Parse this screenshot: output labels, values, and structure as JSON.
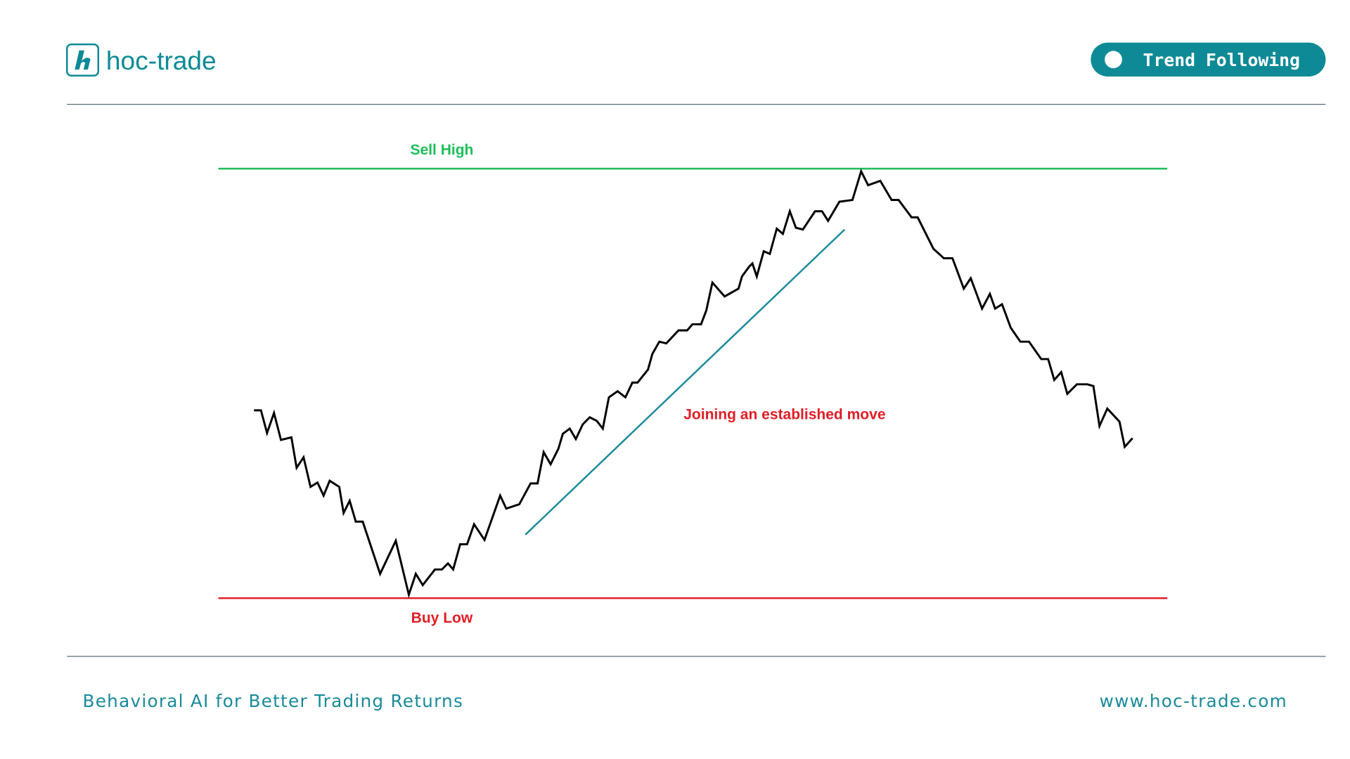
{
  "header": {
    "logo": "hoc-trade",
    "badge": "Trend Following"
  },
  "diagram": {
    "top_label": "Sell High",
    "bottom_label": "Buy Low",
    "annotation": "Joining an established move"
  },
  "footer": {
    "tagline": "Behavioral AI for Better Trading Returns",
    "url": "www.hoc-trade.com"
  }
}
